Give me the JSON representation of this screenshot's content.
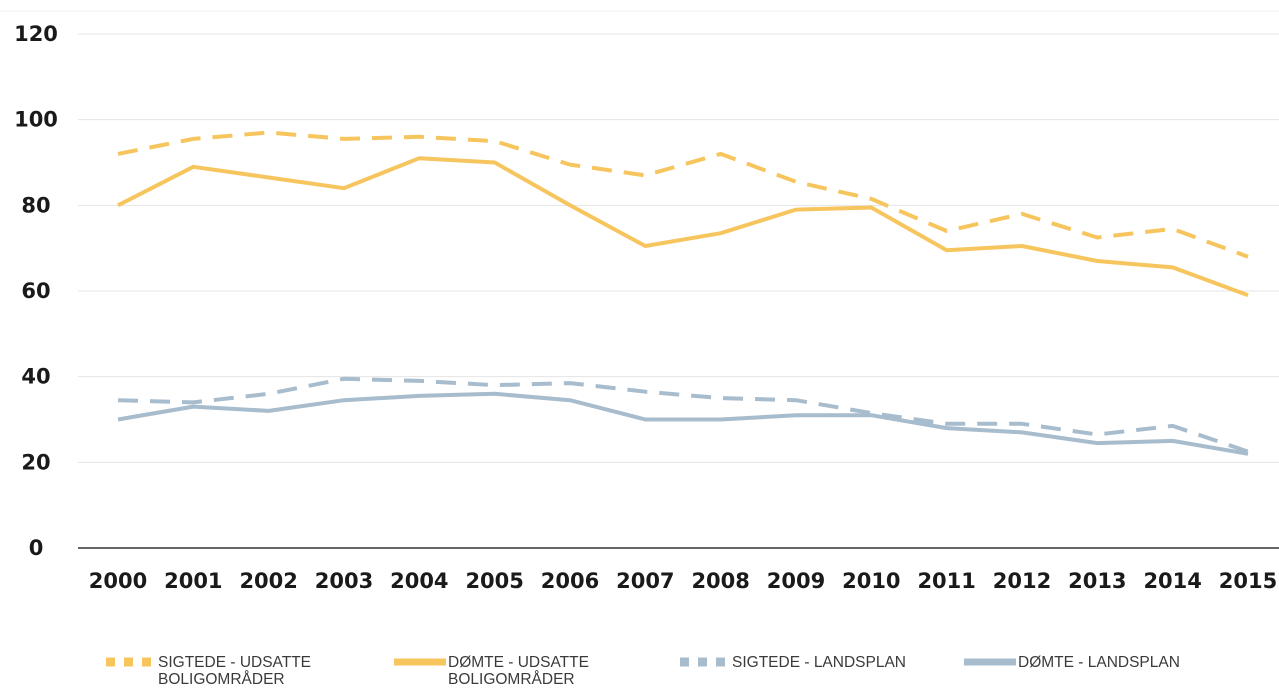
{
  "chart_data": {
    "type": "line",
    "title": "",
    "xlabel": "",
    "ylabel": "",
    "categories": [
      "2000",
      "2001",
      "2002",
      "2003",
      "2004",
      "2005",
      "2006",
      "2007",
      "2008",
      "2009",
      "2010",
      "2011",
      "2012",
      "2013",
      "2014",
      "2015"
    ],
    "ylim": [
      0,
      120
    ],
    "yticks": [
      "0",
      "20",
      "40",
      "60",
      "80",
      "100",
      "120"
    ],
    "grid": true,
    "legend_position": "bottom",
    "series": [
      {
        "name": "SIGTEDE - UDSATTE BOLIGOMRÅDER",
        "color": "#f7c55e",
        "style": "dashed",
        "values": [
          92,
          95.5,
          97,
          95.5,
          96,
          95,
          89.5,
          87,
          92,
          85.5,
          81.5,
          74,
          78,
          72.5,
          74.5,
          68
        ]
      },
      {
        "name": "DØMTE - UDSATTE BOLIGOMRÅDER",
        "color": "#f7c55e",
        "style": "solid",
        "values": [
          80,
          89,
          86.5,
          84,
          91,
          90,
          80,
          70.5,
          73.5,
          79,
          79.5,
          69.5,
          70.5,
          67,
          65.5,
          59
        ]
      },
      {
        "name": "SIGTEDE - LANDSPLAN",
        "color": "#a7bccd",
        "style": "dashed",
        "values": [
          34.5,
          34,
          36,
          39.5,
          39,
          38,
          38.5,
          36.5,
          35,
          34.5,
          31.5,
          29,
          29,
          26.5,
          28.5,
          22.5
        ]
      },
      {
        "name": "DØMTE - LANDSPLAN",
        "color": "#a7bccd",
        "style": "solid",
        "values": [
          30,
          33,
          32,
          34.5,
          35.5,
          36,
          34.5,
          30,
          30,
          31,
          31,
          28,
          27,
          24.5,
          25,
          22
        ]
      }
    ]
  },
  "legend": [
    {
      "line1": "SIGTEDE - UDSATTE",
      "line2": "BOLIGOMRÅDER"
    },
    {
      "line1": "DØMTE - UDSATTE",
      "line2": "BOLIGOMRÅDER"
    },
    {
      "line1": "SIGTEDE - LANDSPLAN",
      "line2": ""
    },
    {
      "line1": "DØMTE - LANDSPLAN",
      "line2": ""
    }
  ]
}
